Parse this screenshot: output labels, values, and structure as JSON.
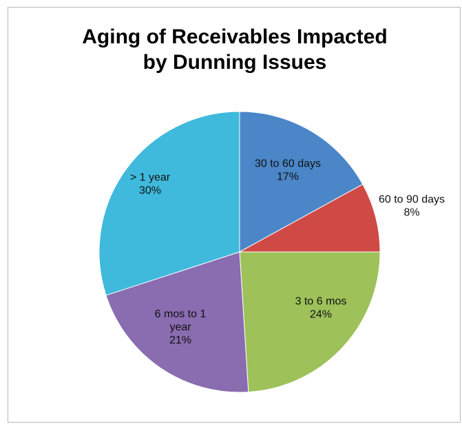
{
  "chart_data": {
    "type": "pie",
    "title_lines": [
      "Aging of Receivables Impacted",
      "by Dunning Issues"
    ],
    "categories": [
      "30 to 60 days",
      "60 to 90 days",
      "3 to 6 mos",
      "6 mos to 1 year",
      "> 1 year"
    ],
    "values": [
      17,
      8,
      24,
      21,
      30
    ],
    "data_labels": [
      [
        "30 to 60 days",
        "17%"
      ],
      [
        "60 to 90 days",
        "8%"
      ],
      [
        "3 to 6 mos",
        "24%"
      ],
      [
        "6 mos to 1",
        "year",
        "21%"
      ],
      [
        "> 1 year",
        "30%"
      ]
    ],
    "colors": [
      "#4a86c8",
      "#cf4a45",
      "#9ec15a",
      "#8a6cb0",
      "#3fbadc"
    ],
    "start_angle_deg": 0,
    "legend": "none"
  }
}
